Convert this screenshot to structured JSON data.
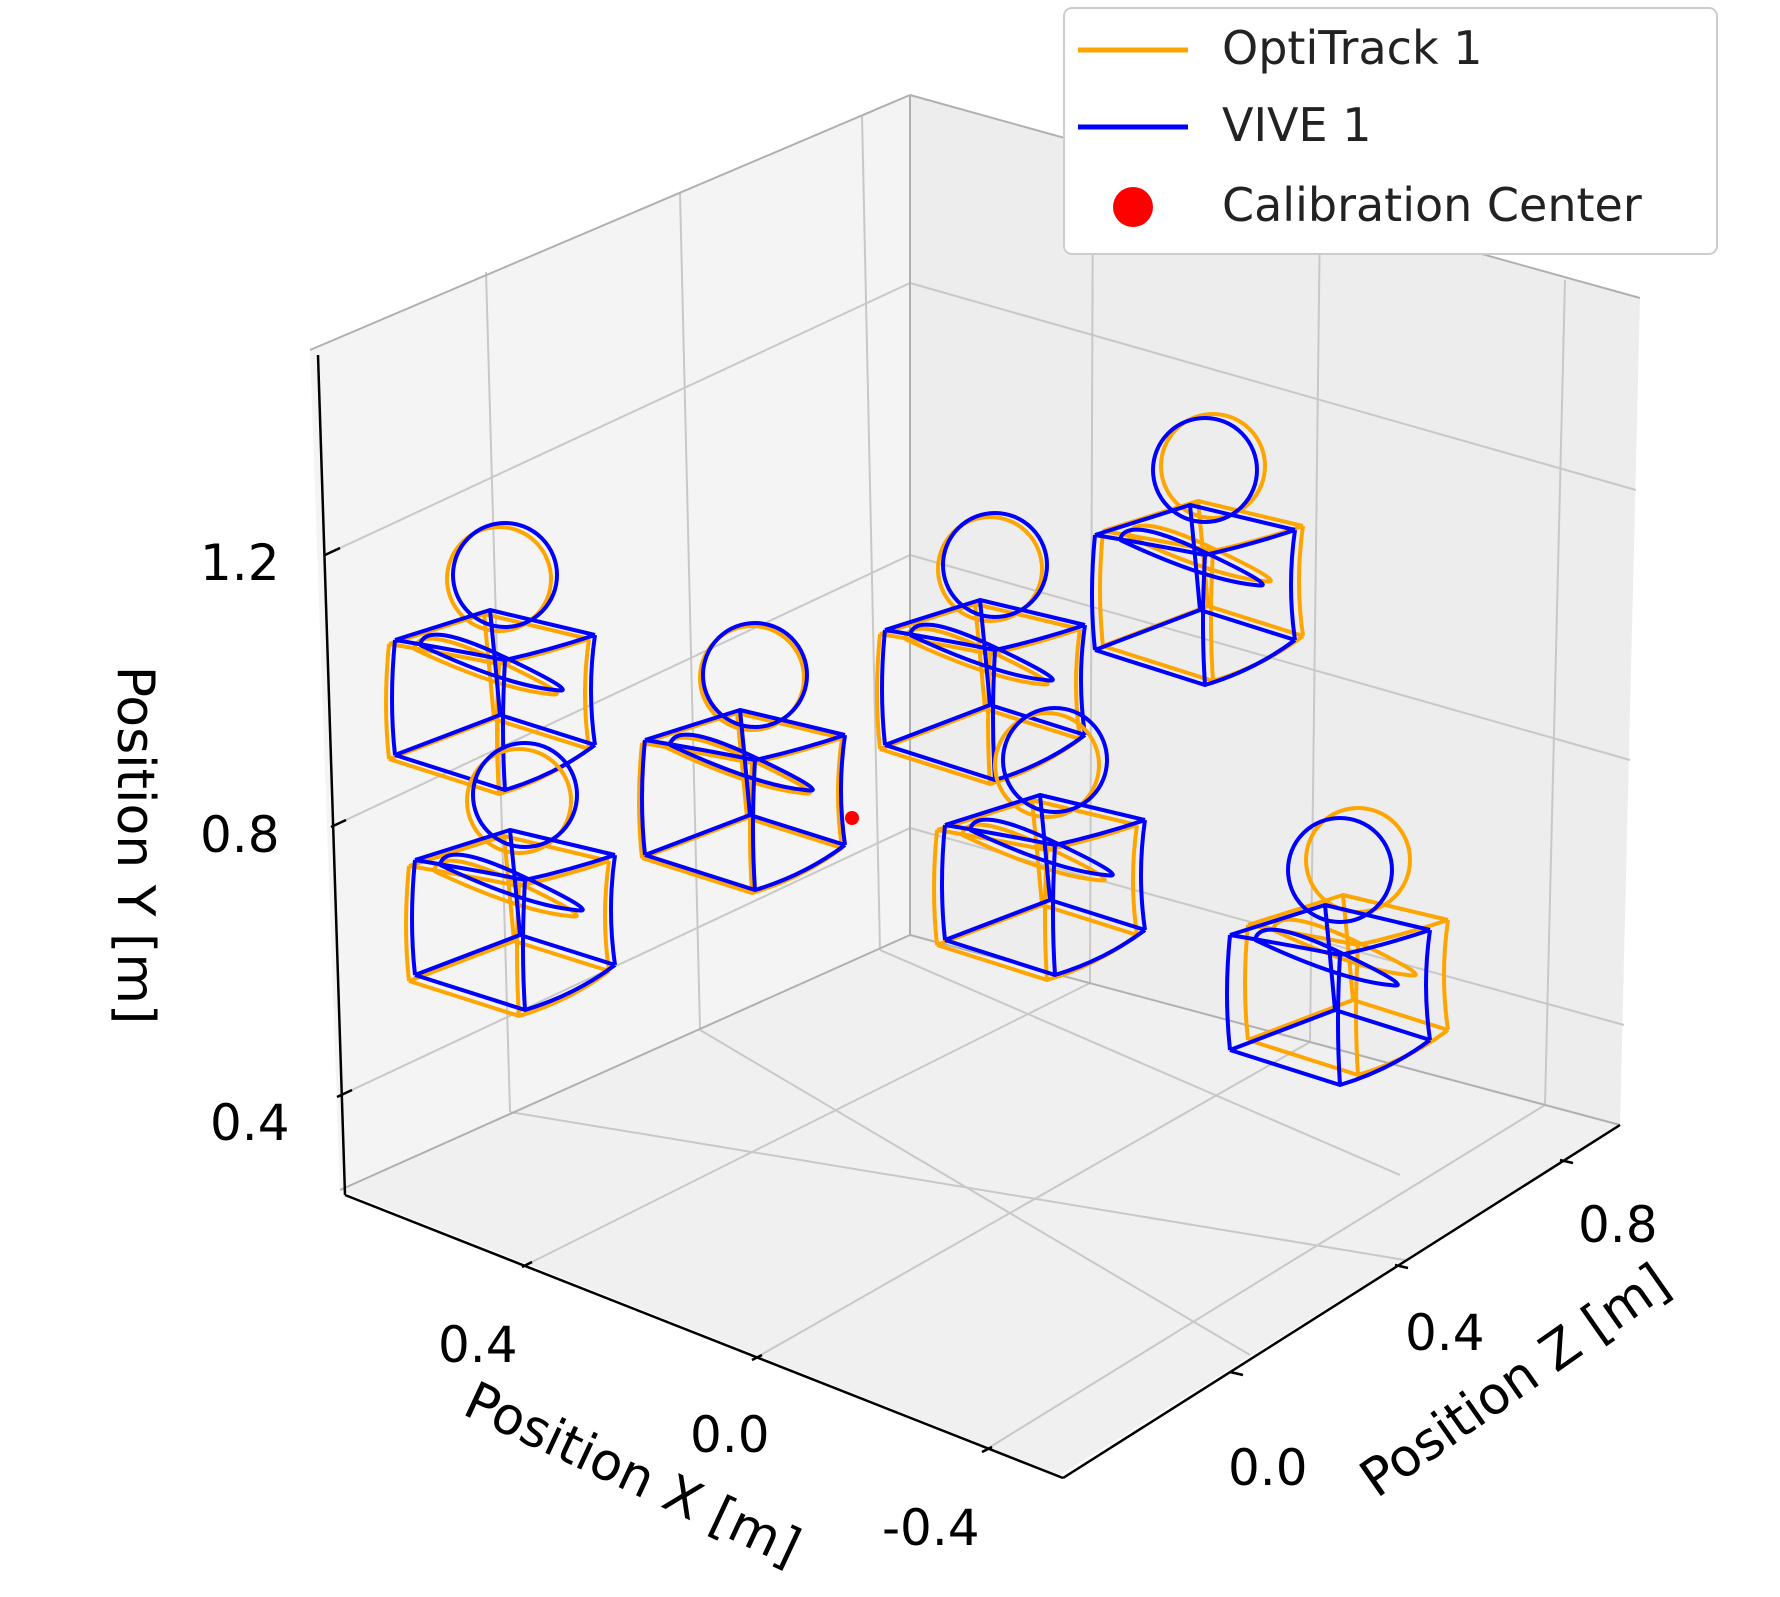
{
  "chart_data": {
    "type": "3d-line",
    "title": "",
    "xlabel": "Position X [m]",
    "ylabel": "Position Y [m]",
    "zlabel": "Position Z [m]",
    "x_ticks": [
      "0.4",
      "0.0",
      "-0.4"
    ],
    "y_ticks": [
      "1.2",
      "0.8",
      "0.4"
    ],
    "z_ticks": [
      "0.8",
      "0.4",
      "0.0"
    ],
    "grid": true,
    "legend_position": "top-right",
    "legend": [
      {
        "label": "OptiTrack 1",
        "color": "#FFA500",
        "marker": "line"
      },
      {
        "label": "VIVE 1",
        "color": "#0000FF",
        "marker": "line"
      },
      {
        "label": "Calibration Center",
        "color": "#FF0000",
        "marker": "dot"
      }
    ],
    "calibration_center": {
      "label": "Calibration Center"
    },
    "trajectory_shape": "cube-with-circles",
    "series": [
      {
        "name": "OptiTrack 1",
        "color": "#FFA500"
      },
      {
        "name": "VIVE 1",
        "color": "#0000FF"
      }
    ]
  },
  "colors": {
    "optitrack": "#FFA500",
    "vive": "#0000FF",
    "center": "#FF0000",
    "pane": "#f2f2f2",
    "grid": "#c8c8c8"
  }
}
